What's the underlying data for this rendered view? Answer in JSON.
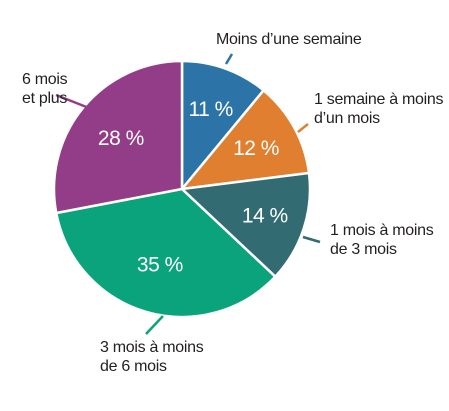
{
  "chart_data": {
    "type": "pie",
    "title": "",
    "slices": [
      {
        "label": "Moins d’une semaine",
        "value": 11,
        "value_label": "11 %",
        "color": "#2c74a8"
      },
      {
        "label": "1 semaine à moins d’un mois",
        "value": 12,
        "value_label": "12 %",
        "color": "#e07f30"
      },
      {
        "label": "1 mois à moins de 3 mois",
        "value": 14,
        "value_label": "14 %",
        "color": "#336b73"
      },
      {
        "label": "3 mois à moins de 6 mois",
        "value": 35,
        "value_label": "35 %",
        "color": "#0aa37b"
      },
      {
        "label": "6 mois et plus",
        "value": 28,
        "value_label": "28 %",
        "color": "#933d88"
      }
    ],
    "category_lines": [
      [
        "Moins d’une semaine"
      ],
      [
        "1 semaine à moins",
        "d’un mois"
      ],
      [
        "1 mois à moins",
        "de 3 mois"
      ],
      [
        "3 mois à moins",
        "de 6 mois"
      ],
      [
        "6 mois",
        "et plus"
      ]
    ],
    "start_angle": "12 o'clock",
    "direction": "clockwise",
    "legend": "none"
  }
}
